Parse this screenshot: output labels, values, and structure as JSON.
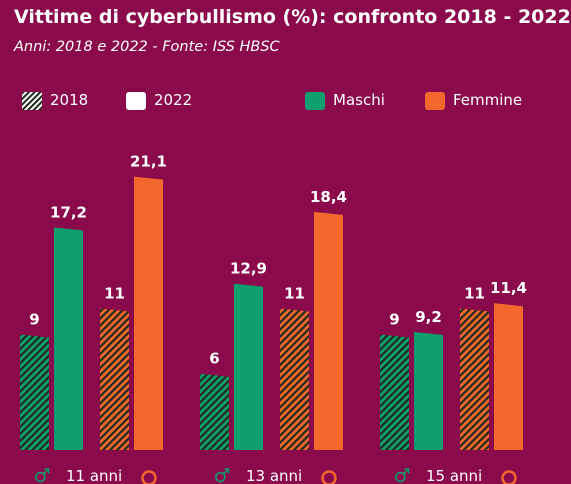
{
  "header": {
    "title": "Vittime di cyberbullismo (%): confronto 2018 - 2022",
    "subtitle": "Anni: 2018 e 2022 - Fonte: ISS HBSC"
  },
  "legend": {
    "year_2018": "2018",
    "year_2022": "2022",
    "male": "Maschi",
    "female": "Femmine"
  },
  "colors": {
    "background": "#8a0a4c",
    "male": "#0f9e6e",
    "female": "#f2672d",
    "hatch_dark": "#1e2a1c",
    "white": "#ffffff"
  },
  "chart_data": {
    "type": "bar",
    "title": "Vittime di cyberbullismo (%): confronto 2018 - 2022",
    "subtitle": "Anni: 2018 e 2022 - Fonte: ISS HBSC",
    "categories": [
      "11 anni",
      "13 anni",
      "15 anni"
    ],
    "series": [
      {
        "name": "Maschi 2018",
        "sex": "male",
        "year": "2018",
        "values": [
          9,
          6,
          9
        ],
        "labels": [
          "9",
          "6",
          "9"
        ]
      },
      {
        "name": "Maschi 2022",
        "sex": "male",
        "year": "2022",
        "values": [
          17.2,
          12.9,
          9.2
        ],
        "labels": [
          "17,2",
          "12,9",
          "9,2"
        ]
      },
      {
        "name": "Femmine 2018",
        "sex": "female",
        "year": "2018",
        "values": [
          11,
          11,
          11
        ],
        "labels": [
          "11",
          "11",
          "11"
        ]
      },
      {
        "name": "Femmine 2022",
        "sex": "female",
        "year": "2022",
        "values": [
          21.1,
          18.4,
          11.4
        ],
        "labels": [
          "21,1",
          "18,4",
          "11,4"
        ]
      }
    ],
    "ylim": [
      0,
      22
    ],
    "grid": false,
    "legend_position": "top",
    "group_icons": {
      "male": "♂",
      "female": "female-circle-icon"
    }
  }
}
